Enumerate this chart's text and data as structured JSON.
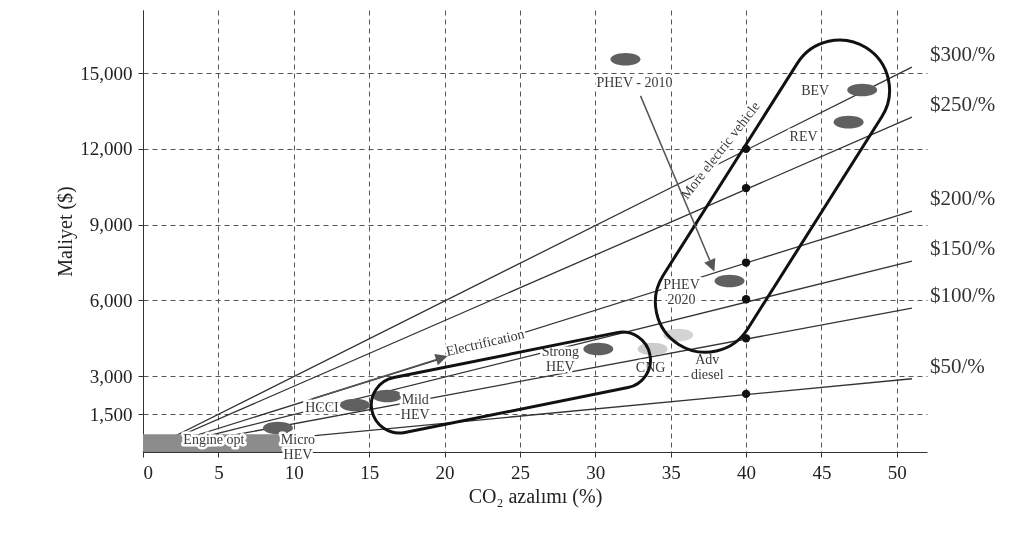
{
  "chart_data": {
    "type": "scatter",
    "xlabel": "CO₂ azalımı (%)",
    "ylabel": "Maliyet ($)",
    "xlim": [
      0,
      52
    ],
    "ylim": [
      0,
      17500
    ],
    "xticks": [
      0,
      5,
      10,
      15,
      20,
      25,
      30,
      35,
      40,
      45,
      50
    ],
    "yticks": [
      {
        "value": 1500,
        "label": "1,500"
      },
      {
        "value": 3000,
        "label": "3,000"
      },
      {
        "value": 6000,
        "label": "6,000"
      },
      {
        "value": 9000,
        "label": "9,000"
      },
      {
        "value": 12000,
        "label": "12,000"
      },
      {
        "value": 15000,
        "label": "15,000"
      }
    ],
    "grid": true,
    "series": [
      {
        "name": "$50/%",
        "type": "line",
        "color": "#333333",
        "x": [
          0,
          51
        ],
        "values": [
          0,
          2900
        ]
      },
      {
        "name": "$100/%",
        "type": "line",
        "color": "#333333",
        "x": [
          0,
          51
        ],
        "values": [
          0,
          5700
        ]
      },
      {
        "name": "$150/%",
        "type": "line",
        "color": "#333333",
        "x": [
          0,
          51
        ],
        "values": [
          0,
          7560
        ]
      },
      {
        "name": "$200/%",
        "type": "line",
        "color": "#333333",
        "x": [
          0,
          51
        ],
        "values": [
          0,
          9540
        ]
      },
      {
        "name": "$250/%",
        "type": "line",
        "color": "#333333",
        "x": [
          0,
          51
        ],
        "values": [
          0,
          13260
        ]
      },
      {
        "name": "$300/%",
        "type": "line",
        "color": "#333333",
        "x": [
          0,
          51
        ],
        "values": [
          0,
          15240
        ]
      },
      {
        "type": "area",
        "color": "#8c8c8c",
        "x": [
          0,
          10
        ],
        "values": [
          700,
          700
        ]
      },
      {
        "marker": "circle",
        "color": "#111111",
        "x": [
          40,
          40,
          40,
          40,
          40,
          40
        ],
        "values": [
          2300,
          4500,
          6050,
          7500,
          10450,
          12000
        ]
      },
      {
        "x": [
          8.95,
          14.06,
          16.2,
          30.2,
          33.8,
          35.5,
          38.9,
          32.0,
          47.7,
          46.8
        ],
        "values": [
          950,
          1860,
          2220,
          4080,
          4080,
          4630,
          6770,
          15550,
          14330,
          13060
        ],
        "colors": [
          "#606060",
          "#606060",
          "#606060",
          "#606060",
          "#cccccc",
          "#d4d4d4",
          "#606060",
          "#606060",
          "#606060",
          "#606060"
        ]
      }
    ],
    "annotations": [
      {
        "text": "Engine opt",
        "x": 4.7,
        "y": 600
      },
      {
        "text": "Micro\nHEV",
        "x": 8.95,
        "y": 950
      },
      {
        "text": "HCCI",
        "x": 14.06,
        "y": 1860
      },
      {
        "text": "Mild\nHEV",
        "x": 16.2,
        "y": 2220
      },
      {
        "text": "Strong\nHEV",
        "x": 30.2,
        "y": 4080
      },
      {
        "text": "CNG",
        "x": 33.8,
        "y": 4080
      },
      {
        "text": "Adv\ndiesel",
        "x": 35.5,
        "y": 4630
      },
      {
        "text": "PHEV\n2020",
        "x": 38.9,
        "y": 6770
      },
      {
        "text": "PHEV - 2010",
        "x": 32.0,
        "y": 15550
      },
      {
        "text": "BEV",
        "x": 47.7,
        "y": 14330
      },
      {
        "text": "REV",
        "x": 46.8,
        "y": 13060
      },
      {
        "text": "Electrification",
        "x": 22.7,
        "y": 4310
      },
      {
        "text": "More electric vehicle",
        "x": 40,
        "y": 12000
      }
    ]
  }
}
